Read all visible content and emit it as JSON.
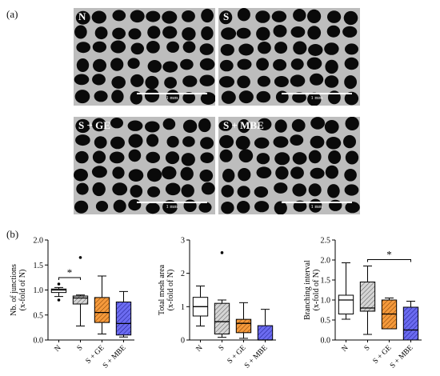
{
  "panels": {
    "a_label": "(a)",
    "b_label": "(b)"
  },
  "micrographs": [
    {
      "label": "N",
      "scale_text": "1 mm"
    },
    {
      "label": "S",
      "scale_text": "1 mm"
    },
    {
      "label": "S + GE",
      "scale_text": "1 mm"
    },
    {
      "label": "S + MBE",
      "scale_text": "1 mm"
    }
  ],
  "colors": {
    "N": "#ffffff",
    "S": "#c8c8c8",
    "S + GE": "#f59a3c",
    "S + MBE": "#6b6bf0"
  },
  "chart_data": [
    {
      "type": "box",
      "categories": [
        "N",
        "S",
        "S + GE",
        "S + MBE"
      ],
      "ylabel": "Nb. of junctions (x-fold of N)",
      "ylim": [
        0.0,
        2.0
      ],
      "yticks": [
        "0.0",
        "0.5",
        "1.0",
        "1.5",
        "2.0"
      ],
      "boxes": [
        {
          "min": 0.87,
          "q1": 0.95,
          "median": 1.0,
          "q3": 1.02,
          "max": 1.05,
          "outliers": [
            0.8,
            1.12
          ]
        },
        {
          "min": 0.28,
          "q1": 0.72,
          "median": 0.84,
          "q3": 0.88,
          "max": 0.9,
          "outliers": [
            1.65
          ]
        },
        {
          "min": 0.12,
          "q1": 0.35,
          "median": 0.55,
          "q3": 0.85,
          "max": 1.28,
          "outliers": []
        },
        {
          "min": 0.06,
          "q1": 0.1,
          "median": 0.33,
          "q3": 0.76,
          "max": 0.97,
          "outliers": []
        }
      ],
      "significance": [
        {
          "from": "N",
          "to": "S",
          "label": "*"
        }
      ]
    },
    {
      "type": "box",
      "categories": [
        "N",
        "S",
        "S + GE",
        "S + MBE"
      ],
      "ylabel": "Total mesh area (x-fold of N)",
      "ylim": [
        0,
        3
      ],
      "yticks": [
        "0",
        "1",
        "2",
        "3"
      ],
      "boxes": [
        {
          "min": 0.42,
          "q1": 0.72,
          "median": 1.0,
          "q3": 1.28,
          "max": 1.62,
          "outliers": []
        },
        {
          "min": 0.08,
          "q1": 0.18,
          "median": 0.55,
          "q3": 1.1,
          "max": 1.2,
          "outliers": [
            2.62
          ]
        },
        {
          "min": 0.05,
          "q1": 0.22,
          "median": 0.5,
          "q3": 0.62,
          "max": 1.12,
          "outliers": []
        },
        {
          "min": 0.0,
          "q1": 0.0,
          "median": 0.0,
          "q3": 0.43,
          "max": 0.92,
          "outliers": []
        }
      ],
      "significance": []
    },
    {
      "type": "box",
      "categories": [
        "N",
        "S",
        "S + GE",
        "S + MBE"
      ],
      "ylabel": "Branching interval (x-fold of N)",
      "ylim": [
        0.0,
        2.5
      ],
      "yticks": [
        "0.0",
        "0.5",
        "1.0",
        "1.5",
        "2.0",
        "2.5"
      ],
      "boxes": [
        {
          "min": 0.52,
          "q1": 0.65,
          "median": 1.0,
          "q3": 1.12,
          "max": 1.93,
          "outliers": []
        },
        {
          "min": 0.14,
          "q1": 0.72,
          "median": 0.8,
          "q3": 1.45,
          "max": 1.85,
          "outliers": []
        },
        {
          "min": 0.28,
          "q1": 0.28,
          "median": 0.65,
          "q3": 1.0,
          "max": 1.05,
          "outliers": []
        },
        {
          "min": 0.0,
          "q1": 0.0,
          "median": 0.25,
          "q3": 0.82,
          "max": 0.97,
          "outliers": []
        }
      ],
      "significance": [
        {
          "from": "S",
          "to": "S + MBE",
          "label": "*"
        }
      ]
    }
  ]
}
